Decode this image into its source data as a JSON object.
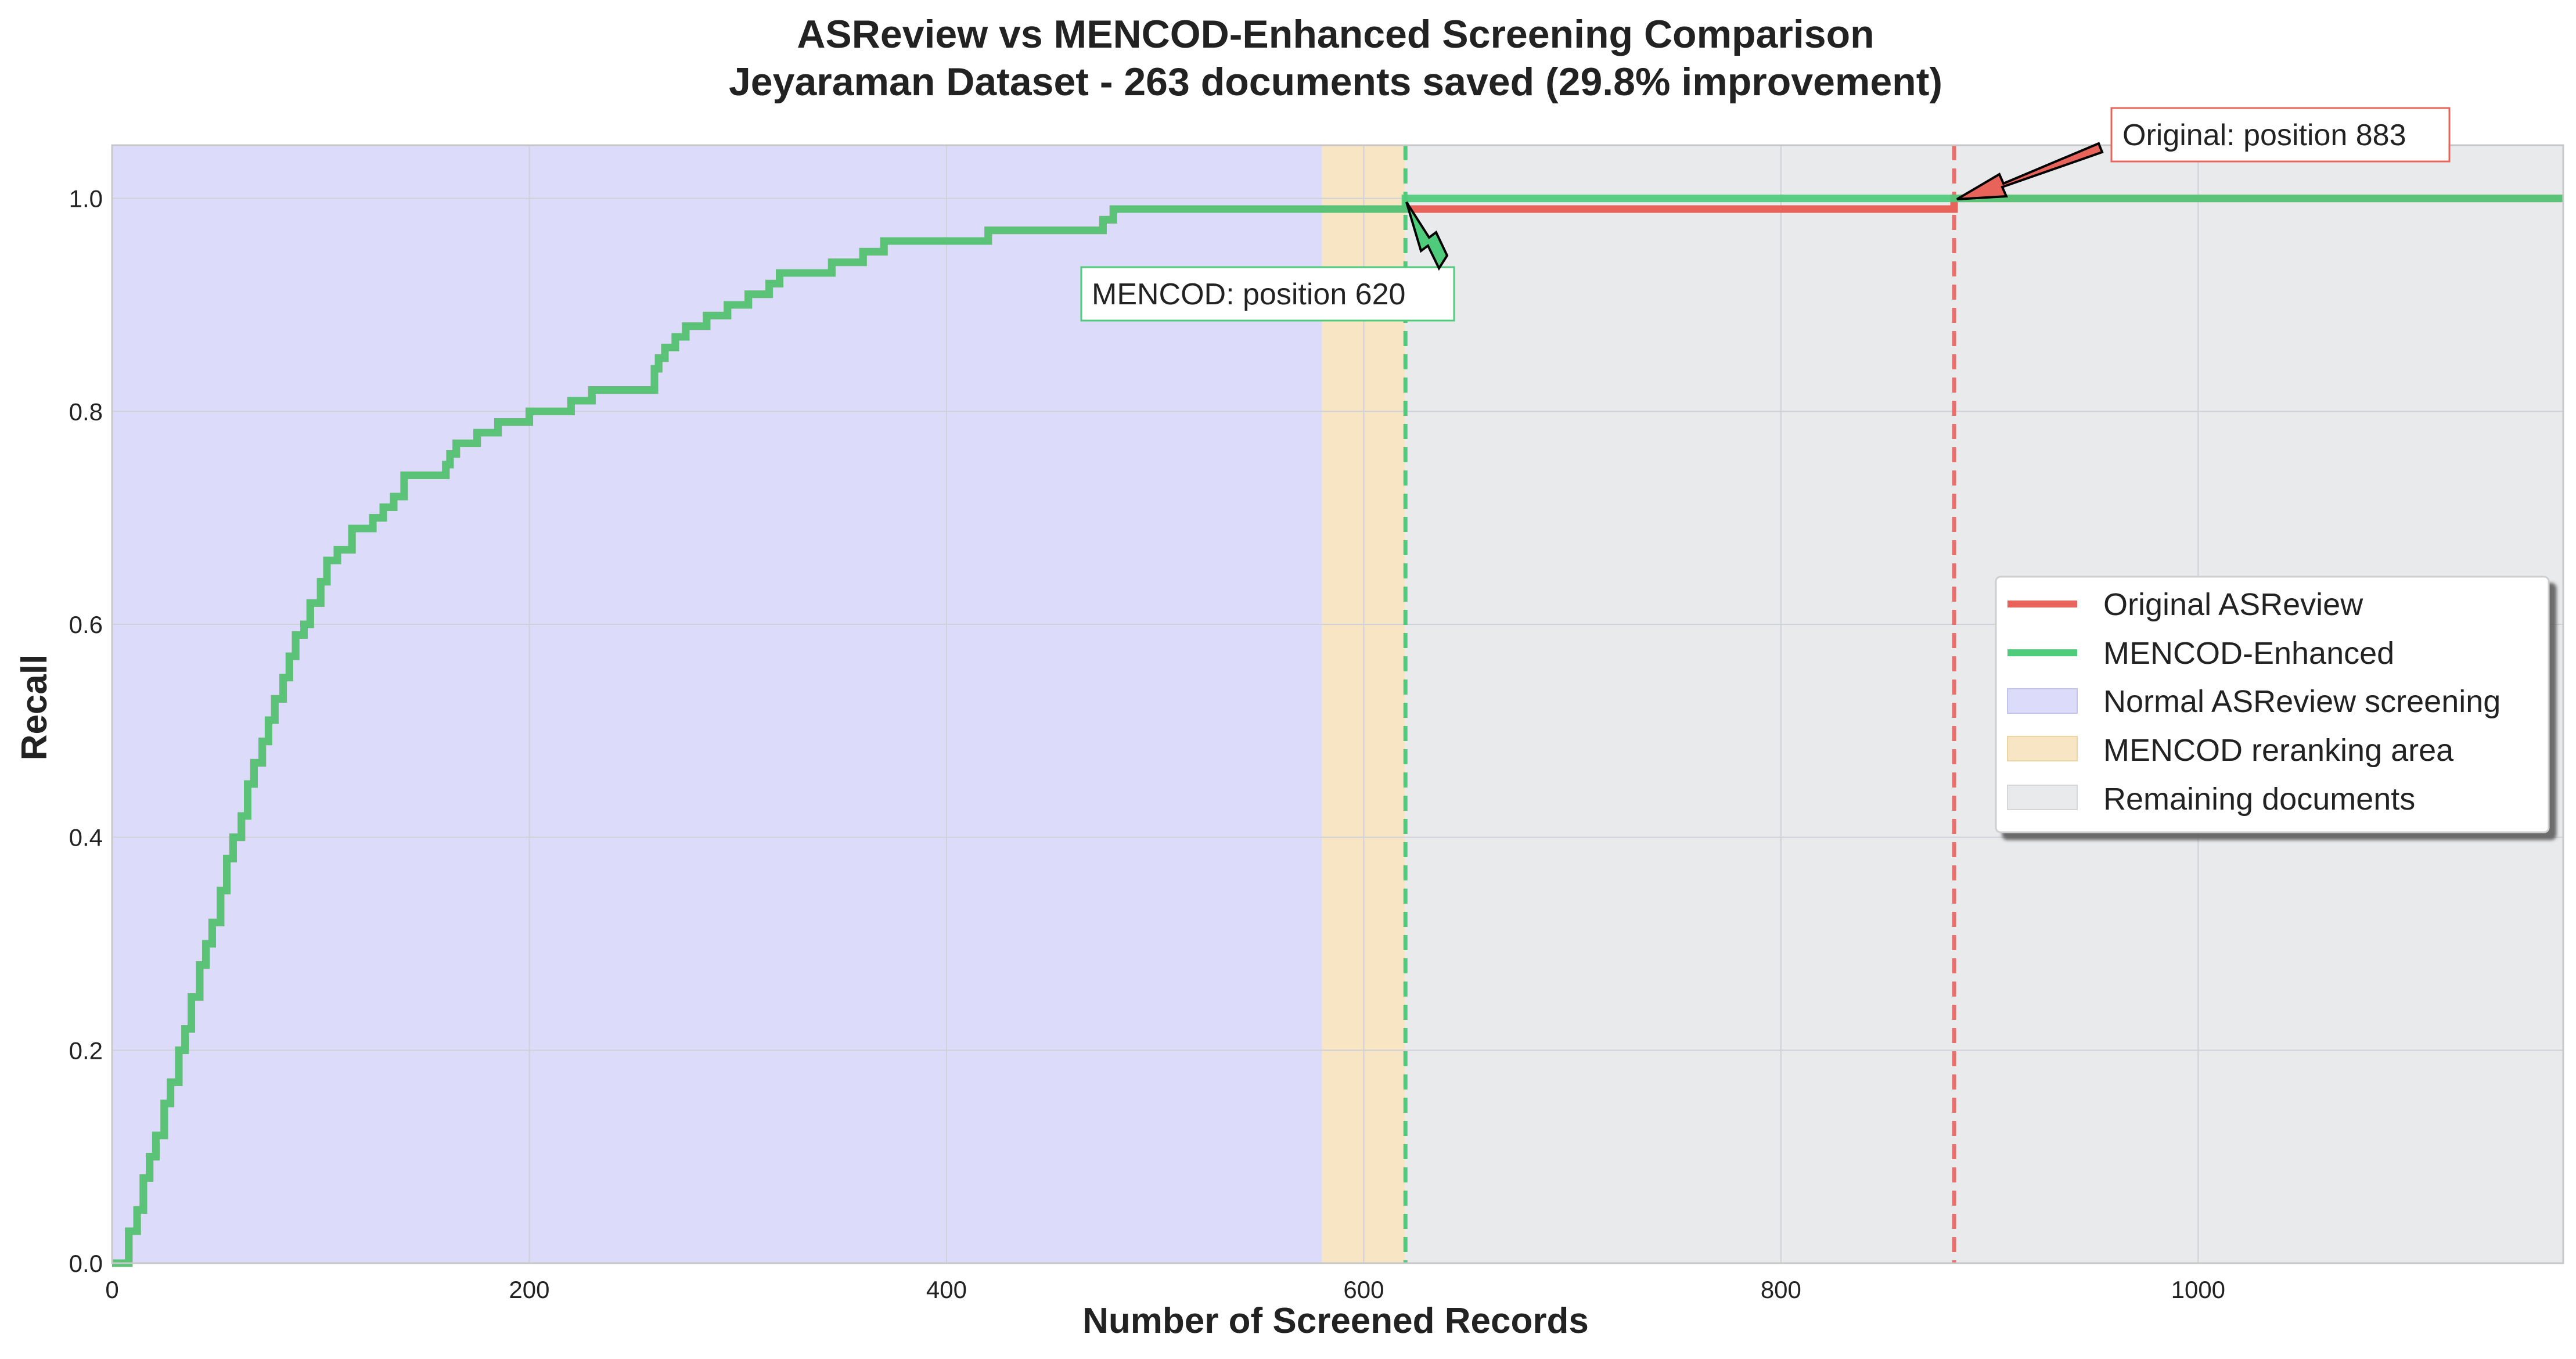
{
  "chart_data": {
    "type": "line",
    "title": "ASReview vs MENCOD-Enhanced Screening Comparison",
    "subtitle": "Jeyaraman Dataset - 263 documents saved (29.8% improvement)",
    "xlabel": "Number of Screened Records",
    "ylabel": "Recall",
    "xlim": [
      0,
      1175
    ],
    "ylim": [
      0,
      1.05
    ],
    "xticks": [
      0,
      200,
      400,
      600,
      800,
      1000
    ],
    "yticks": [
      0.0,
      0.2,
      0.4,
      0.6,
      0.8,
      1.0
    ],
    "xtick_labels": [
      "0",
      "200",
      "400",
      "600",
      "800",
      "1000"
    ],
    "ytick_labels": [
      "0.0",
      "0.2",
      "0.4",
      "0.6",
      "0.8",
      "1.0"
    ],
    "grid": true,
    "legend_position": "center-right",
    "regions": [
      {
        "name": "Normal ASReview screening",
        "x_start": 0,
        "x_end": 580,
        "color": "#dcdcfa"
      },
      {
        "name": "MENCOD reranking area",
        "x_start": 580,
        "x_end": 620,
        "color": "#f8e5c3"
      },
      {
        "name": "Remaining documents",
        "x_start": 620,
        "x_end": 1175,
        "color": "#e9eaec"
      }
    ],
    "vlines": [
      {
        "x": 620,
        "color": "#4ecb7b",
        "label": "MENCOD position"
      },
      {
        "x": 883,
        "color": "#e8726b",
        "label": "Original position"
      }
    ],
    "series": [
      {
        "name": "Original ASReview",
        "color": "#e8645a",
        "x": [
          0,
          5,
          8,
          12,
          15,
          18,
          21,
          25,
          28,
          32,
          35,
          38,
          42,
          45,
          48,
          52,
          55,
          58,
          62,
          65,
          68,
          72,
          75,
          78,
          82,
          85,
          88,
          92,
          95,
          100,
          103,
          108,
          115,
          125,
          130,
          135,
          140,
          160,
          162,
          165,
          175,
          185,
          200,
          220,
          230,
          260,
          262,
          265,
          270,
          275,
          285,
          295,
          305,
          315,
          320,
          345,
          360,
          370,
          420,
          470,
          475,
          480,
          620,
          883,
          883,
          1175
        ],
        "y": [
          0.0,
          0.0,
          0.03,
          0.05,
          0.08,
          0.1,
          0.12,
          0.15,
          0.17,
          0.2,
          0.22,
          0.25,
          0.28,
          0.3,
          0.32,
          0.35,
          0.38,
          0.4,
          0.42,
          0.45,
          0.47,
          0.49,
          0.51,
          0.53,
          0.55,
          0.57,
          0.59,
          0.6,
          0.62,
          0.64,
          0.66,
          0.67,
          0.69,
          0.7,
          0.71,
          0.72,
          0.74,
          0.75,
          0.76,
          0.77,
          0.78,
          0.79,
          0.8,
          0.81,
          0.82,
          0.84,
          0.85,
          0.86,
          0.87,
          0.88,
          0.89,
          0.9,
          0.91,
          0.92,
          0.93,
          0.94,
          0.95,
          0.96,
          0.97,
          0.97,
          0.98,
          0.99,
          0.99,
          0.99,
          1.0,
          1.0
        ]
      },
      {
        "name": "MENCOD-Enhanced",
        "color": "#4ecb7b",
        "x": [
          0,
          5,
          8,
          12,
          15,
          18,
          21,
          25,
          28,
          32,
          35,
          38,
          42,
          45,
          48,
          52,
          55,
          58,
          62,
          65,
          68,
          72,
          75,
          78,
          82,
          85,
          88,
          92,
          95,
          100,
          103,
          108,
          115,
          125,
          130,
          135,
          140,
          160,
          162,
          165,
          175,
          185,
          200,
          220,
          230,
          260,
          262,
          265,
          270,
          275,
          285,
          295,
          305,
          315,
          320,
          345,
          360,
          370,
          420,
          470,
          475,
          480,
          620,
          620,
          1175
        ],
        "y": [
          0.0,
          0.0,
          0.03,
          0.05,
          0.08,
          0.1,
          0.12,
          0.15,
          0.17,
          0.2,
          0.22,
          0.25,
          0.28,
          0.3,
          0.32,
          0.35,
          0.38,
          0.4,
          0.42,
          0.45,
          0.47,
          0.49,
          0.51,
          0.53,
          0.55,
          0.57,
          0.59,
          0.6,
          0.62,
          0.64,
          0.66,
          0.67,
          0.69,
          0.7,
          0.71,
          0.72,
          0.74,
          0.75,
          0.76,
          0.77,
          0.78,
          0.79,
          0.8,
          0.81,
          0.82,
          0.84,
          0.85,
          0.86,
          0.87,
          0.88,
          0.89,
          0.9,
          0.91,
          0.92,
          0.93,
          0.94,
          0.95,
          0.96,
          0.97,
          0.97,
          0.98,
          0.99,
          0.99,
          1.0,
          1.0
        ]
      }
    ],
    "annotations": [
      {
        "text": "MENCOD: position 620",
        "x": 620,
        "y": 1.0,
        "color": "#4ecb7b"
      },
      {
        "text": "Original: position 883",
        "x": 883,
        "y": 1.0,
        "color": "#e8645a"
      }
    ],
    "legend": [
      {
        "label": "Original ASReview",
        "kind": "line",
        "color": "#e8645a"
      },
      {
        "label": "MENCOD-Enhanced",
        "kind": "line",
        "color": "#4ecb7b"
      },
      {
        "label": "Normal ASReview screening",
        "kind": "patch",
        "color": "#dcdcfa"
      },
      {
        "label": "MENCOD reranking area",
        "kind": "patch",
        "color": "#f8e5c3"
      },
      {
        "label": "Remaining documents",
        "kind": "patch",
        "color": "#e9eaec"
      }
    ]
  }
}
